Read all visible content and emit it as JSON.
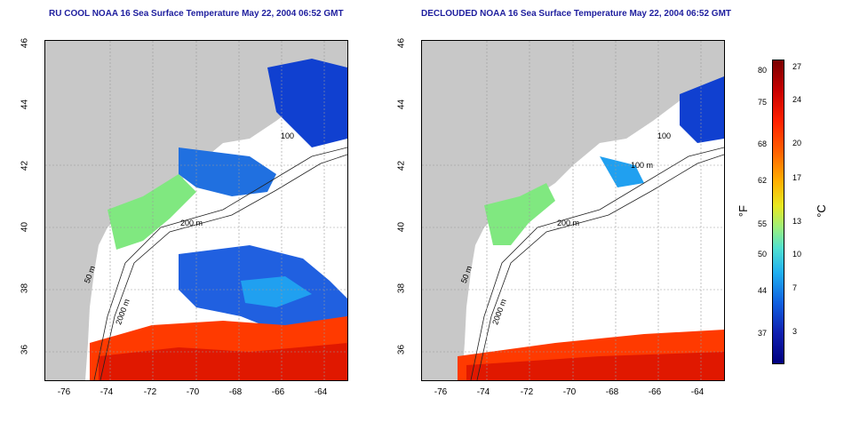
{
  "left_title": "RU COOL NOAA 16 Sea Surface Temperature May 22, 2004 06:52 GMT",
  "right_title": "DECLOUDED NOAA 16 Sea Surface Temperature May 22, 2004 06:52 GMT",
  "lat_ticks": [
    "46",
    "44",
    "42",
    "40",
    "38",
    "36"
  ],
  "lon_ticks": [
    "-76",
    "-74",
    "-72",
    "-70",
    "-68",
    "-66",
    "-64"
  ],
  "isobath_labels": [
    "100",
    "200 m",
    "50 m",
    "2000 m",
    "100 m"
  ],
  "colorbar": {
    "unit_f": "°F",
    "unit_c": "°C",
    "f_ticks": [
      "80",
      "75",
      "68",
      "62",
      "55",
      "50",
      "44",
      "37"
    ],
    "c_ticks": [
      "27",
      "24",
      "20",
      "17",
      "13",
      "10",
      "7",
      "3"
    ]
  },
  "colors": {
    "land": "#c8c8c8",
    "cloud": "#ffffff",
    "cold": "#1040d0",
    "cool": "#20a0f0",
    "mild": "#80e880",
    "warm": "#ff3a00",
    "hot": "#e01800",
    "title": "#1e1e9e"
  }
}
